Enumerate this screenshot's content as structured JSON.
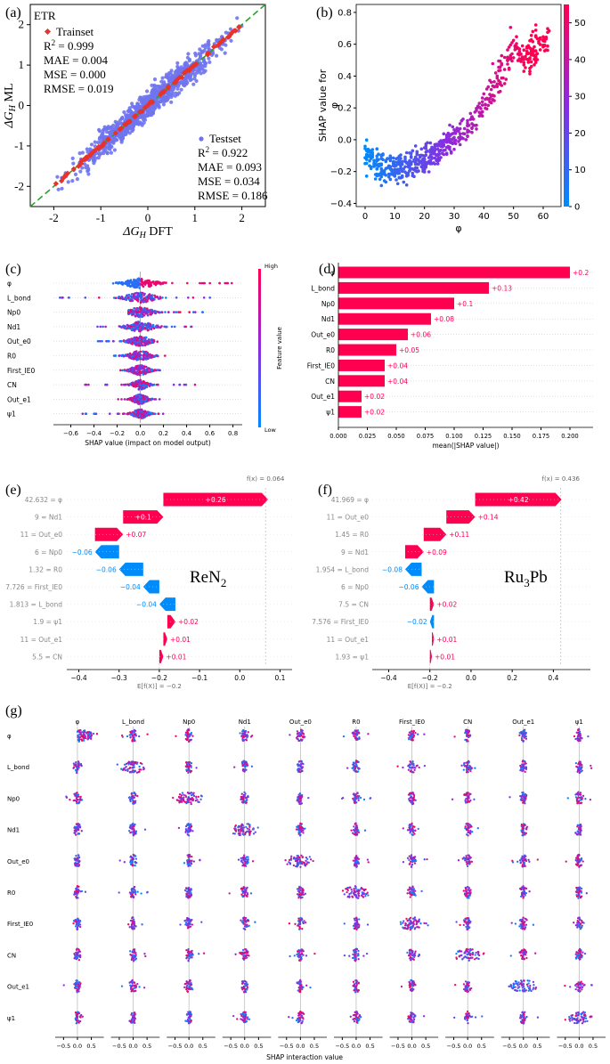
{
  "panel_labels": {
    "a": "(a)",
    "b": "(b)",
    "c": "(c)",
    "d": "(d)",
    "e": "(e)",
    "f": "(f)",
    "g": "(g)"
  },
  "colors": {
    "pink": "#ff0051",
    "blue": "#008bfb",
    "purple": "#8a2be2",
    "diag": "#2ca02c",
    "train": "#e8322b",
    "test": "#6f74ee"
  },
  "chart_data": [
    {
      "id": "a",
      "type": "scatter",
      "title": "ETR",
      "xlabel": "ΔG_H DFT",
      "ylabel": "ΔG_H ML",
      "xlim": [
        -2.5,
        2.5
      ],
      "ylim": [
        -2.5,
        2.5
      ],
      "xticks": [
        -2,
        -1,
        0,
        1,
        2
      ],
      "yticks": [
        -2,
        -1,
        0,
        1,
        2
      ],
      "series": [
        {
          "name": "Trainset",
          "marker": "diamond",
          "metrics": [
            "R² = 0.999",
            "MAE = 0.004",
            "MSE = 0.000",
            "RMSE = 0.019"
          ]
        },
        {
          "name": "Testset",
          "marker": "circle",
          "metrics": [
            "R² = 0.922",
            "MAE = 0.093",
            "MSE = 0.034",
            "RMSE = 0.186"
          ]
        }
      ],
      "metric_lines": {
        "train": [
          {
            "pre": "R",
            "sup": "2",
            "post": " = 0.999"
          },
          {
            "pre": "MAE = 0.004"
          },
          {
            "pre": "MSE = 0.000"
          },
          {
            "pre": "RMSE = 0.019"
          }
        ],
        "test": [
          {
            "pre": "R",
            "sup": "2",
            "post": " = 0.922"
          },
          {
            "pre": "MAE = 0.093"
          },
          {
            "pre": "MSE = 0.034"
          },
          {
            "pre": "RMSE = 0.186"
          }
        ]
      },
      "diagonal": "y = x (dashed)"
    },
    {
      "id": "b",
      "type": "scatter",
      "xlabel": "φ",
      "ylabel": "SHAP value for\nφ",
      "xlim": [
        -3,
        66
      ],
      "ylim": [
        -0.42,
        0.85
      ],
      "xticks": [
        0,
        10,
        20,
        30,
        40,
        50,
        60
      ],
      "yticks": [
        -0.4,
        -0.2,
        0.0,
        0.2,
        0.4,
        0.6,
        0.8
      ],
      "ytick_labels": [
        "−0.4",
        "−0.2",
        "0.0",
        "0.2",
        "0.4",
        "0.6",
        "0.8"
      ],
      "colorbar": {
        "min": 0,
        "max": 55,
        "ticks": [
          0,
          10,
          20,
          30,
          40,
          50
        ]
      },
      "trend": [
        {
          "x": 0,
          "y": -0.1
        },
        {
          "x": 5,
          "y": -0.17
        },
        {
          "x": 10,
          "y": -0.18
        },
        {
          "x": 15,
          "y": -0.16
        },
        {
          "x": 20,
          "y": -0.12
        },
        {
          "x": 25,
          "y": -0.07
        },
        {
          "x": 30,
          "y": 0.02
        },
        {
          "x": 35,
          "y": 0.08
        },
        {
          "x": 40,
          "y": 0.22
        },
        {
          "x": 43,
          "y": 0.32
        },
        {
          "x": 46,
          "y": 0.43
        },
        {
          "x": 50,
          "y": 0.58
        },
        {
          "x": 55,
          "y": 0.52
        },
        {
          "x": 60,
          "y": 0.62
        }
      ]
    },
    {
      "id": "c",
      "type": "beeswarm",
      "xlabel": "SHAP value (impact on model output)",
      "features": [
        "φ",
        "L_bond",
        "Np0",
        "Nd1",
        "Out_e0",
        "R0",
        "First_IE0",
        "CN",
        "Out_e1",
        "ψ1"
      ],
      "xlim": [
        -0.75,
        0.88
      ],
      "xticks": [
        -0.6,
        -0.4,
        -0.2,
        0.0,
        0.2,
        0.4,
        0.6,
        0.8
      ],
      "xtick_labels": [
        "−0.6",
        "−0.4",
        "−0.2",
        "0.0",
        "0.2",
        "0.4",
        "0.6",
        "0.8"
      ],
      "spread": [
        {
          "min": -0.28,
          "max": 0.8,
          "width": 0.1
        },
        {
          "min": -0.7,
          "max": 0.68,
          "width": 0.1
        },
        {
          "min": -0.1,
          "max": 0.55,
          "width": 0.08
        },
        {
          "min": -0.38,
          "max": 0.5,
          "width": 0.09
        },
        {
          "min": -0.4,
          "max": 0.15,
          "width": 0.07
        },
        {
          "min": -0.28,
          "max": 0.22,
          "width": 0.07
        },
        {
          "min": -0.2,
          "max": 0.2,
          "width": 0.06
        },
        {
          "min": -0.5,
          "max": 0.48,
          "width": 0.05
        },
        {
          "min": -0.2,
          "max": 0.2,
          "width": 0.05
        },
        {
          "min": -0.5,
          "max": 0.28,
          "width": 0.05
        }
      ],
      "colorbar": {
        "label": "Feature value",
        "high": "High",
        "low": "Low"
      }
    },
    {
      "id": "d",
      "type": "bar",
      "xlabel": "mean(|SHAP value|)",
      "categories": [
        "φ",
        "L_bond",
        "Np0",
        "Nd1",
        "Out_e0",
        "R0",
        "First_IE0",
        "CN",
        "Out_e1",
        "ψ1"
      ],
      "values": [
        0.2,
        0.13,
        0.1,
        0.08,
        0.06,
        0.05,
        0.04,
        0.04,
        0.02,
        0.02
      ],
      "value_labels": [
        "+0.2",
        "+0.13",
        "+0.1",
        "+0.08",
        "+0.06",
        "+0.05",
        "+0.04",
        "+0.04",
        "+0.02",
        "+0.02"
      ],
      "xlim": [
        0,
        0.22
      ],
      "xticks": [
        0.0,
        0.025,
        0.05,
        0.075,
        0.1,
        0.125,
        0.15,
        0.175,
        0.2
      ],
      "xtick_labels": [
        "0.000",
        "0.025",
        "0.050",
        "0.075",
        "0.100",
        "0.125",
        "0.150",
        "0.175",
        "0.200"
      ]
    },
    {
      "id": "e",
      "type": "waterfall",
      "annotation": "ReN2",
      "base": -0.2,
      "fx": 0.064,
      "fx_label": "f(x) = 0.064",
      "base_label": "E[f(X)] = −0.2",
      "feature_labels": [
        "42.632 = φ",
        "9 = Nd1",
        "11 = Out_e0",
        "6 = Np0",
        "1.32 = R0",
        "7.726 = First_IE0",
        "1.813 = L_bond",
        "1.9 = ψ1",
        "11 = Out_e1",
        "5.5 = CN"
      ],
      "contribs": [
        0.26,
        0.1,
        0.07,
        -0.06,
        -0.06,
        -0.04,
        -0.04,
        0.02,
        0.01,
        0.01
      ],
      "contrib_labels": [
        "+0.26",
        "+0.1",
        "+0.07",
        "−0.06",
        "−0.06",
        "−0.04",
        "−0.04",
        "+0.02",
        "+0.01",
        "+0.01"
      ],
      "xlim": [
        -0.43,
        0.13
      ],
      "xticks": [
        -0.4,
        -0.3,
        -0.2,
        -0.1,
        0.0,
        0.1
      ],
      "xtick_labels": [
        "−0.4",
        "−0.3",
        "−0.2",
        "−0.1",
        "0.0",
        "0.1"
      ]
    },
    {
      "id": "f",
      "type": "waterfall",
      "annotation": "Ru3Pb",
      "base": -0.2,
      "fx": 0.436,
      "fx_label": "f(x) = 0.436",
      "base_label": "E[f(X)] = −0.2",
      "feature_labels": [
        "41.969 = φ",
        "11 = Out_e0",
        "1.45 = R0",
        "9 = Nd1",
        "1.954 = L_bond",
        "6 = Np0",
        "7.5 = CN",
        "7.576 = First_IE0",
        "11 = Out_e1",
        "1.93 = ψ1"
      ],
      "contribs": [
        0.42,
        0.14,
        0.11,
        0.09,
        -0.08,
        -0.06,
        0.02,
        -0.02,
        0.01,
        0.01
      ],
      "contrib_labels": [
        "+0.42",
        "+0.14",
        "+0.11",
        "+0.09",
        "−0.08",
        "−0.06",
        "+0.02",
        "−0.02",
        "+0.01",
        "+0.01"
      ],
      "xlim": [
        -0.48,
        0.58
      ],
      "xticks": [
        -0.4,
        -0.2,
        0.0,
        0.2,
        0.4
      ],
      "xtick_labels": [
        "−0.4",
        "−0.2",
        "0.0",
        "0.2",
        "0.4"
      ]
    },
    {
      "id": "g",
      "type": "interaction-beeswarm-grid",
      "xlabel": "SHAP interaction value",
      "features": [
        "φ",
        "L_bond",
        "Np0",
        "Nd1",
        "Out_e0",
        "R0",
        "First_IE0",
        "CN",
        "Out_e1",
        "ψ1"
      ],
      "xlim": [
        -0.8,
        0.95
      ],
      "xticks": [
        -0.5,
        0.0,
        0.5
      ],
      "xtick_labels": [
        "−0.5",
        "0.0",
        "0.5"
      ]
    }
  ]
}
